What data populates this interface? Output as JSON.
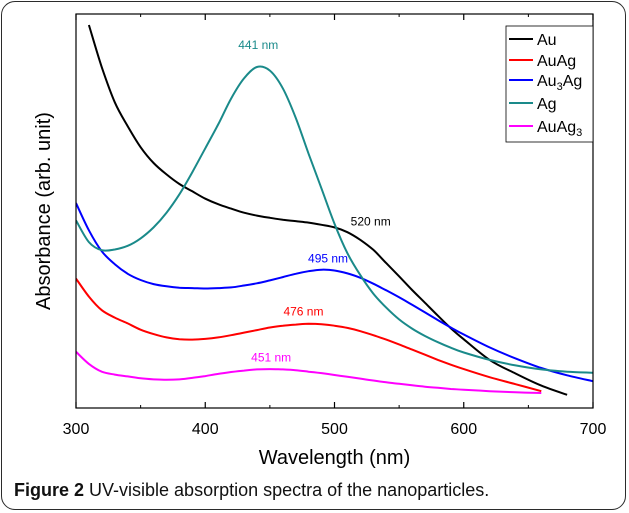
{
  "chart_data": {
    "type": "line",
    "xlabel": "Wavelength (nm)",
    "ylabel": "Absorbance (arb. unit)",
    "xlim": [
      300,
      700
    ],
    "ylim": [
      0,
      1
    ],
    "xticks": [
      300,
      400,
      500,
      600,
      700
    ],
    "xtick_labels": [
      "300",
      "400",
      "500",
      "600",
      "700"
    ],
    "yticks_shown": false,
    "grid": false,
    "legend_position": "top-right",
    "series": [
      {
        "name": "Au",
        "name_base": "Au",
        "name_sub": "",
        "name_tail": "",
        "color": "#000000",
        "x": [
          310,
          320,
          330,
          340,
          350,
          360,
          370,
          380,
          390,
          400,
          410,
          420,
          430,
          440,
          450,
          460,
          470,
          480,
          490,
          500,
          510,
          520,
          530,
          540,
          550,
          560,
          570,
          580,
          590,
          600,
          620,
          640,
          660,
          680
        ],
        "y": [
          1.0,
          0.885,
          0.79,
          0.725,
          0.668,
          0.625,
          0.594,
          0.568,
          0.548,
          0.528,
          0.513,
          0.501,
          0.49,
          0.482,
          0.476,
          0.471,
          0.467,
          0.463,
          0.457,
          0.45,
          0.437,
          0.416,
          0.389,
          0.353,
          0.317,
          0.28,
          0.245,
          0.21,
          0.176,
          0.146,
          0.09,
          0.053,
          0.02,
          -0.005
        ]
      },
      {
        "name": "AuAg",
        "name_base": "AuAg",
        "name_sub": "",
        "name_tail": "",
        "color": "#ff0000",
        "x": [
          300,
          310,
          320,
          330,
          340,
          350,
          360,
          370,
          380,
          390,
          400,
          410,
          420,
          430,
          440,
          450,
          460,
          470,
          480,
          490,
          500,
          510,
          520,
          530,
          540,
          550,
          560,
          570,
          580,
          590,
          600,
          620,
          640,
          660
        ],
        "y": [
          0.311,
          0.262,
          0.225,
          0.205,
          0.189,
          0.172,
          0.16,
          0.151,
          0.146,
          0.145,
          0.147,
          0.151,
          0.157,
          0.164,
          0.171,
          0.178,
          0.183,
          0.186,
          0.188,
          0.187,
          0.183,
          0.177,
          0.168,
          0.157,
          0.145,
          0.132,
          0.118,
          0.104,
          0.09,
          0.077,
          0.065,
          0.043,
          0.024,
          0.005
        ]
      },
      {
        "name": "Au3Ag",
        "name_base": "Au",
        "name_sub": "3",
        "name_tail": "Ag",
        "color": "#0000ff",
        "x": [
          300,
          310,
          320,
          330,
          340,
          350,
          360,
          370,
          380,
          390,
          400,
          410,
          420,
          430,
          440,
          450,
          460,
          470,
          480,
          490,
          500,
          510,
          520,
          530,
          540,
          550,
          560,
          570,
          580,
          590,
          600,
          620,
          640,
          660,
          680,
          700
        ],
        "y": [
          0.516,
          0.442,
          0.385,
          0.35,
          0.324,
          0.307,
          0.296,
          0.29,
          0.286,
          0.285,
          0.284,
          0.285,
          0.287,
          0.292,
          0.298,
          0.306,
          0.315,
          0.324,
          0.331,
          0.335,
          0.333,
          0.325,
          0.313,
          0.297,
          0.279,
          0.26,
          0.24,
          0.219,
          0.198,
          0.178,
          0.159,
          0.124,
          0.094,
          0.068,
          0.048,
          0.032
        ]
      },
      {
        "name": "Ag",
        "name_base": "Ag",
        "name_sub": "",
        "name_tail": "",
        "color": "#1a8a8a",
        "x": [
          300,
          310,
          320,
          330,
          340,
          350,
          360,
          370,
          380,
          390,
          400,
          410,
          420,
          430,
          440,
          450,
          460,
          470,
          480,
          490,
          500,
          510,
          520,
          530,
          540,
          550,
          560,
          570,
          580,
          590,
          600,
          620,
          640,
          660,
          680,
          700
        ],
        "y": [
          0.469,
          0.41,
          0.388,
          0.39,
          0.4,
          0.42,
          0.45,
          0.49,
          0.54,
          0.6,
          0.665,
          0.73,
          0.8,
          0.855,
          0.886,
          0.876,
          0.828,
          0.748,
          0.65,
          0.555,
          0.46,
          0.38,
          0.32,
          0.27,
          0.232,
          0.2,
          0.175,
          0.155,
          0.138,
          0.123,
          0.11,
          0.09,
          0.075,
          0.064,
          0.058,
          0.055
        ]
      },
      {
        "name": "AuAg3",
        "name_base": "AuAg",
        "name_sub": "3",
        "name_tail": "",
        "color": "#ff00ff",
        "x": [
          300,
          310,
          320,
          330,
          340,
          350,
          360,
          370,
          380,
          390,
          400,
          410,
          420,
          430,
          440,
          450,
          460,
          470,
          480,
          490,
          500,
          510,
          520,
          530,
          540,
          550,
          560,
          570,
          580,
          590,
          600,
          620,
          640,
          660
        ],
        "y": [
          0.112,
          0.079,
          0.058,
          0.05,
          0.045,
          0.04,
          0.037,
          0.036,
          0.037,
          0.041,
          0.046,
          0.052,
          0.057,
          0.061,
          0.064,
          0.065,
          0.064,
          0.062,
          0.058,
          0.054,
          0.049,
          0.044,
          0.039,
          0.034,
          0.029,
          0.025,
          0.021,
          0.017,
          0.014,
          0.011,
          0.009,
          0.005,
          0.002,
          0.0
        ]
      }
    ],
    "annotations": [
      {
        "text": "441 nm",
        "x": 441,
        "y": 0.935,
        "color": "#1a8a8a"
      },
      {
        "text": "520 nm",
        "x": 528,
        "y": 0.455,
        "color": "#000000"
      },
      {
        "text": "495 nm",
        "x": 495,
        "y": 0.355,
        "color": "#0000ff"
      },
      {
        "text": "476 nm",
        "x": 476,
        "y": 0.21,
        "color": "#ff0000"
      },
      {
        "text": "451 nm",
        "x": 451,
        "y": 0.085,
        "color": "#ff00ff"
      }
    ]
  },
  "caption": {
    "label": "Figure 2",
    "text": " UV-visible absorption spectra of the nanoparticles."
  }
}
